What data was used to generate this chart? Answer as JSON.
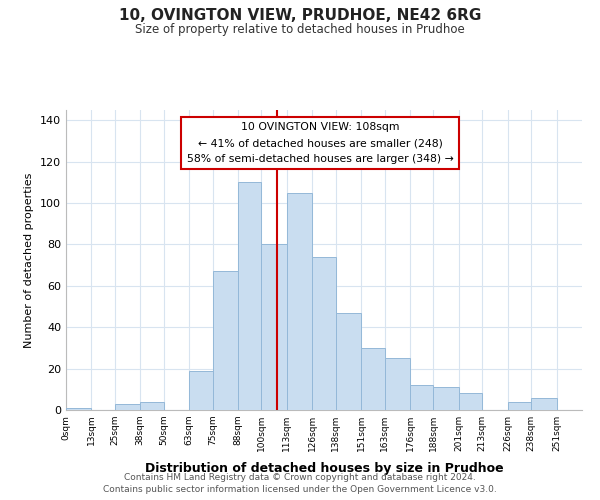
{
  "title": "10, OVINGTON VIEW, PRUDHOE, NE42 6RG",
  "subtitle": "Size of property relative to detached houses in Prudhoe",
  "xlabel": "Distribution of detached houses by size in Prudhoe",
  "ylabel": "Number of detached properties",
  "bar_edges": [
    0,
    13,
    25,
    38,
    50,
    63,
    75,
    88,
    100,
    113,
    126,
    138,
    151,
    163,
    176,
    188,
    201,
    213,
    226,
    238,
    251
  ],
  "bar_heights": [
    1,
    0,
    3,
    4,
    0,
    19,
    67,
    110,
    80,
    105,
    74,
    47,
    30,
    25,
    12,
    11,
    8,
    0,
    4,
    6
  ],
  "bar_color": "#c9ddf0",
  "bar_edgecolor": "#94b8d8",
  "vline_x": 108,
  "vline_color": "#cc0000",
  "ylim": [
    0,
    145
  ],
  "xlim": [
    0,
    264
  ],
  "tick_labels": [
    "0sqm",
    "13sqm",
    "25sqm",
    "38sqm",
    "50sqm",
    "63sqm",
    "75sqm",
    "88sqm",
    "100sqm",
    "113sqm",
    "126sqm",
    "138sqm",
    "151sqm",
    "163sqm",
    "176sqm",
    "188sqm",
    "201sqm",
    "213sqm",
    "226sqm",
    "238sqm",
    "251sqm"
  ],
  "annotation_title": "10 OVINGTON VIEW: 108sqm",
  "annotation_line1": "← 41% of detached houses are smaller (248)",
  "annotation_line2": "58% of semi-detached houses are larger (348) →",
  "annotation_box_color": "#cc0000",
  "annotation_bg": "#ffffff",
  "footer_line1": "Contains HM Land Registry data © Crown copyright and database right 2024.",
  "footer_line2": "Contains public sector information licensed under the Open Government Licence v3.0.",
  "grid_color": "#d8e4f0",
  "yticks": [
    0,
    20,
    40,
    60,
    80,
    100,
    120,
    140
  ]
}
